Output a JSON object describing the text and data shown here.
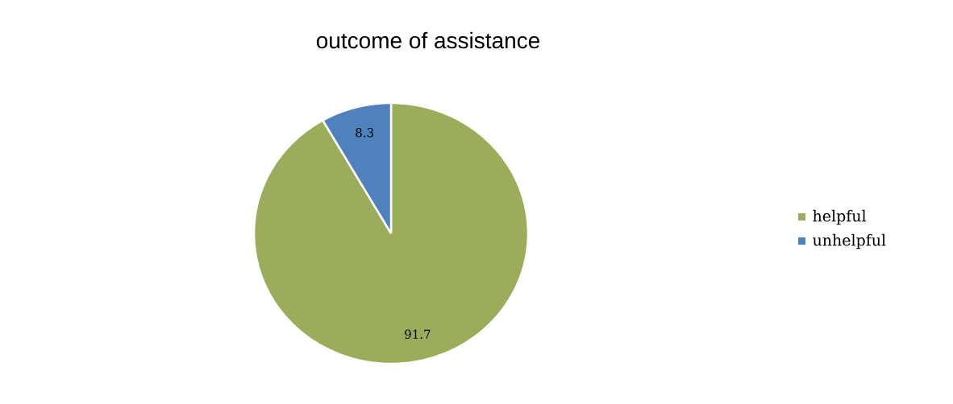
{
  "chart_data": {
    "type": "pie",
    "title": "outcome of assistance",
    "categories": [
      "helpful",
      "unhelpful"
    ],
    "values": [
      91.7,
      8.3
    ],
    "colors": [
      "#9bad5a",
      "#4f81bd"
    ],
    "data_labels": true,
    "legend": "right"
  }
}
